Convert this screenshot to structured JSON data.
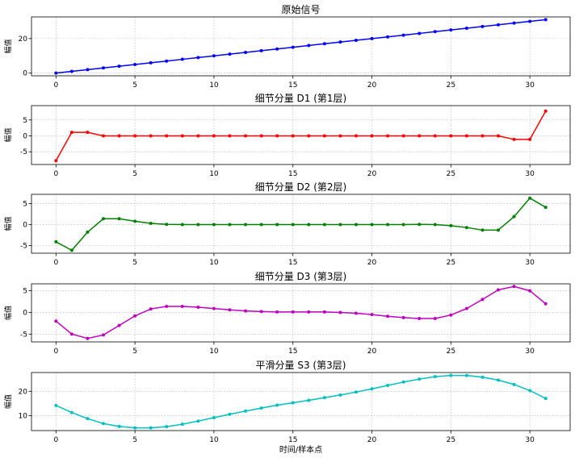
{
  "chart_data": [
    {
      "type": "line",
      "title": "原始信号",
      "xlabel": "",
      "ylabel": "幅值",
      "xlim": [
        -1.55,
        32.55
      ],
      "ylim": [
        -1.55,
        32.55
      ],
      "xticks": [
        0,
        5,
        10,
        15,
        20,
        25,
        30
      ],
      "yticks": [
        0,
        20
      ],
      "grid": true,
      "series": [
        {
          "color": "#0000ff",
          "x": [
            0,
            1,
            2,
            3,
            4,
            5,
            6,
            7,
            8,
            9,
            10,
            11,
            12,
            13,
            14,
            15,
            16,
            17,
            18,
            19,
            20,
            21,
            22,
            23,
            24,
            25,
            26,
            27,
            28,
            29,
            30,
            31
          ],
          "values": [
            0,
            1,
            2,
            3,
            4,
            5,
            6,
            7,
            8,
            9,
            10,
            11,
            12,
            13,
            14,
            15,
            16,
            17,
            18,
            19,
            20,
            21,
            22,
            23,
            24,
            25,
            26,
            27,
            28,
            29,
            30,
            31
          ]
        }
      ]
    },
    {
      "type": "line",
      "title": "细节分量 D1 (第1层)",
      "xlabel": "",
      "ylabel": "幅值",
      "xlim": [
        -1.55,
        32.55
      ],
      "ylim": [
        -9.0,
        9.5
      ],
      "xticks": [
        0,
        5,
        10,
        15,
        20,
        25,
        30
      ],
      "yticks": [
        -5,
        0,
        5
      ],
      "grid": true,
      "series": [
        {
          "color": "#ff0000",
          "x": [
            0,
            1,
            2,
            3,
            4,
            5,
            6,
            7,
            8,
            9,
            10,
            11,
            12,
            13,
            14,
            15,
            16,
            17,
            18,
            19,
            20,
            21,
            22,
            23,
            24,
            25,
            26,
            27,
            28,
            29,
            30,
            31
          ],
          "values": [
            -7.8,
            1.1,
            1.1,
            0,
            0,
            0,
            0,
            0,
            0,
            0,
            0,
            0,
            0,
            0,
            0,
            0,
            0,
            0,
            0,
            0,
            0,
            0,
            0,
            0,
            0,
            0,
            0,
            0,
            0,
            -1.1,
            -1.1,
            7.8
          ]
        }
      ]
    },
    {
      "type": "line",
      "title": "细节分量 D2 (第2层)",
      "xlabel": "",
      "ylabel": "幅值",
      "xlim": [
        -1.55,
        32.55
      ],
      "ylim": [
        -6.8,
        7.2
      ],
      "xticks": [
        0,
        5,
        10,
        15,
        20,
        25,
        30
      ],
      "yticks": [
        -5,
        0,
        5
      ],
      "grid": true,
      "series": [
        {
          "color": "#008000",
          "x": [
            0,
            1,
            2,
            3,
            4,
            5,
            6,
            7,
            8,
            9,
            10,
            11,
            12,
            13,
            14,
            15,
            16,
            17,
            18,
            19,
            20,
            21,
            22,
            23,
            24,
            25,
            26,
            27,
            28,
            29,
            30,
            31
          ],
          "values": [
            -4.1,
            -6.1,
            -1.8,
            1.4,
            1.4,
            0.8,
            0.3,
            0.05,
            0,
            0,
            0,
            0,
            0,
            0,
            0,
            0,
            0,
            0,
            0,
            0,
            0,
            0,
            0,
            0.05,
            0,
            -0.25,
            -0.7,
            -1.3,
            -1.3,
            1.9,
            6.3,
            4.1
          ]
        }
      ]
    },
    {
      "type": "line",
      "title": "细节分量 D3 (第3层)",
      "xlabel": "",
      "ylabel": "幅值",
      "xlim": [
        -1.55,
        32.55
      ],
      "ylim": [
        -6.8,
        6.6
      ],
      "xticks": [
        0,
        5,
        10,
        15,
        20,
        25,
        30
      ],
      "yticks": [
        -5,
        0,
        5
      ],
      "grid": true,
      "series": [
        {
          "color": "#bf00bf",
          "x": [
            0,
            1,
            2,
            3,
            4,
            5,
            6,
            7,
            8,
            9,
            10,
            11,
            12,
            13,
            14,
            15,
            16,
            17,
            18,
            19,
            20,
            21,
            22,
            23,
            24,
            25,
            26,
            27,
            28,
            29,
            30,
            31
          ],
          "values": [
            -2.0,
            -5.0,
            -6.0,
            -5.2,
            -3.0,
            -0.8,
            0.8,
            1.4,
            1.4,
            1.2,
            0.9,
            0.6,
            0.35,
            0.2,
            0.1,
            0.1,
            0.1,
            0.1,
            0,
            -0.2,
            -0.5,
            -0.9,
            -1.2,
            -1.4,
            -1.4,
            -0.6,
            0.9,
            3.0,
            5.2,
            6.0,
            5.0,
            2.0
          ]
        }
      ]
    },
    {
      "type": "line",
      "title": "平滑分量 S3 (第3层)",
      "xlabel": "时间/样本点",
      "ylabel": "幅值",
      "xlim": [
        -1.55,
        32.55
      ],
      "ylim": [
        3.9,
        27.7
      ],
      "xticks": [
        0,
        5,
        10,
        15,
        20,
        25,
        30
      ],
      "yticks": [
        10,
        20
      ],
      "grid": true,
      "series": [
        {
          "color": "#00bfbf",
          "x": [
            0,
            1,
            2,
            3,
            4,
            5,
            6,
            7,
            8,
            9,
            10,
            11,
            12,
            13,
            14,
            15,
            16,
            17,
            18,
            19,
            20,
            21,
            22,
            23,
            24,
            25,
            26,
            27,
            28,
            29,
            30,
            31
          ],
          "values": [
            14.2,
            11.3,
            8.8,
            6.8,
            5.6,
            5.0,
            5.0,
            5.5,
            6.5,
            7.8,
            9.2,
            10.6,
            11.9,
            13.1,
            14.3,
            15.3,
            16.3,
            17.4,
            18.5,
            19.7,
            21.0,
            22.4,
            23.8,
            25.0,
            26.0,
            26.5,
            26.5,
            25.8,
            24.6,
            22.8,
            20.3,
            17.1
          ]
        }
      ]
    }
  ]
}
